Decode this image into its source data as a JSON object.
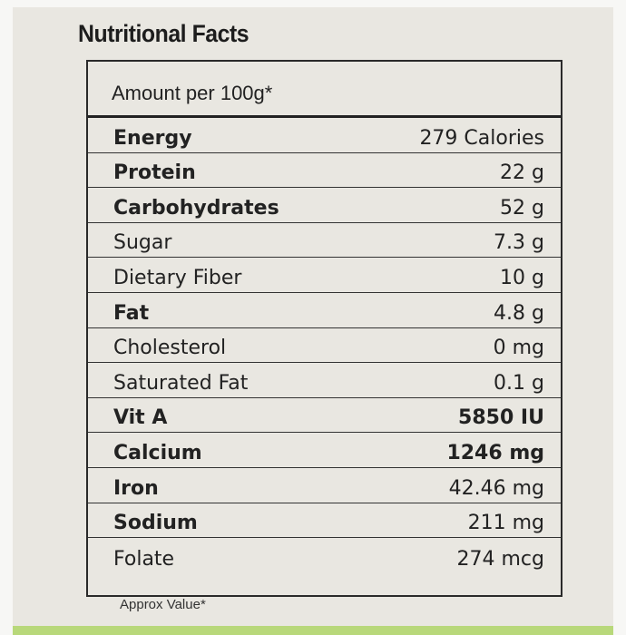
{
  "header": {
    "title": "Nutritional Facts"
  },
  "table": {
    "heading": "Amount per 100g*",
    "rows": [
      [
        "Energy",
        "279 Calories"
      ],
      [
        "Protein",
        "22 g"
      ],
      [
        "Carbohydrates",
        "52 g"
      ],
      [
        "Sugar",
        "7.3 g"
      ],
      [
        "Dietary Fiber",
        "10 g"
      ],
      [
        "Fat",
        "4.8 g"
      ],
      [
        "Cholesterol",
        "0 mg"
      ],
      [
        "Saturated Fat",
        "0.1 g"
      ],
      [
        "Vit A",
        "5850 IU"
      ],
      [
        "Calcium",
        "1246 mg"
      ],
      [
        "Iron",
        "42.46 mg"
      ],
      [
        "Sodium",
        "211 mg"
      ],
      [
        "Folate",
        "274 mcg"
      ]
    ]
  },
  "footer": {
    "note": "Approx Value*"
  }
}
